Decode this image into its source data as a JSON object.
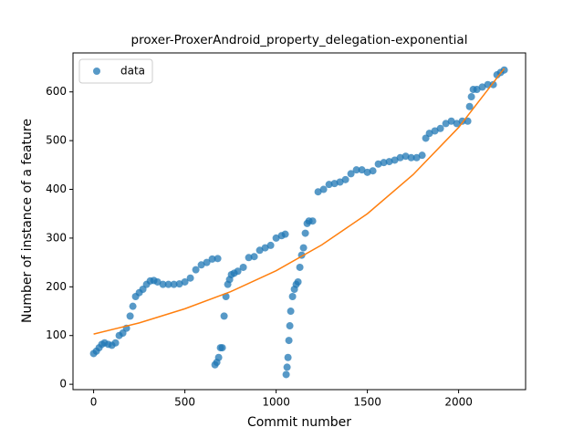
{
  "chart_data": {
    "type": "scatter",
    "title": "proxer-ProxerAndroid_property_delegation-exponential",
    "x_label": "Commit number",
    "y_label": "Number of instance of a feature",
    "xlim": [
      -113,
      2367
    ],
    "ylim": [
      -11,
      680
    ],
    "xticks": [
      0,
      500,
      1000,
      1500,
      2000
    ],
    "yticks": [
      0,
      100,
      200,
      300,
      400,
      500,
      600
    ],
    "legend": "upper left",
    "series": [
      {
        "name": "data",
        "type": "scatter",
        "color": "#1f77b4",
        "x": [
          0,
          15,
          30,
          45,
          60,
          80,
          100,
          120,
          140,
          160,
          180,
          200,
          215,
          230,
          250,
          270,
          290,
          310,
          330,
          350,
          380,
          410,
          440,
          470,
          500,
          530,
          560,
          590,
          620,
          650,
          680,
          665,
          675,
          685,
          695,
          705,
          715,
          725,
          735,
          745,
          755,
          770,
          790,
          820,
          850,
          880,
          910,
          940,
          970,
          1000,
          1030,
          1050,
          1055,
          1060,
          1065,
          1070,
          1075,
          1080,
          1090,
          1100,
          1110,
          1120,
          1130,
          1140,
          1150,
          1160,
          1170,
          1180,
          1200,
          1230,
          1260,
          1290,
          1320,
          1350,
          1380,
          1410,
          1440,
          1470,
          1500,
          1530,
          1560,
          1590,
          1620,
          1650,
          1680,
          1710,
          1740,
          1770,
          1800,
          1820,
          1840,
          1870,
          1900,
          1930,
          1960,
          1990,
          2020,
          2050,
          2060,
          2070,
          2080,
          2100,
          2130,
          2160,
          2190,
          2210,
          2230,
          2250
        ],
        "values": [
          63,
          68,
          75,
          82,
          85,
          82,
          80,
          85,
          100,
          105,
          115,
          140,
          160,
          180,
          188,
          195,
          205,
          212,
          213,
          210,
          205,
          205,
          205,
          206,
          210,
          218,
          235,
          245,
          250,
          257,
          258,
          40,
          45,
          55,
          75,
          75,
          140,
          180,
          205,
          215,
          225,
          228,
          232,
          240,
          260,
          262,
          275,
          280,
          285,
          300,
          305,
          308,
          20,
          35,
          55,
          90,
          120,
          150,
          180,
          195,
          205,
          210,
          240,
          265,
          280,
          310,
          330,
          335,
          335,
          395,
          400,
          410,
          412,
          415,
          420,
          432,
          440,
          440,
          435,
          438,
          452,
          455,
          457,
          460,
          465,
          468,
          465,
          465,
          470,
          505,
          515,
          520,
          525,
          535,
          540,
          535,
          540,
          540,
          570,
          590,
          605,
          605,
          610,
          615,
          615,
          635,
          640,
          645
        ]
      },
      {
        "type": "line",
        "color": "#ff7f0e",
        "x": [
          0,
          250,
          500,
          750,
          1000,
          1250,
          1500,
          1750,
          2000,
          2250
        ],
        "values": [
          103,
          126,
          155,
          190,
          233,
          286,
          350,
          430,
          527,
          648
        ]
      }
    ]
  }
}
